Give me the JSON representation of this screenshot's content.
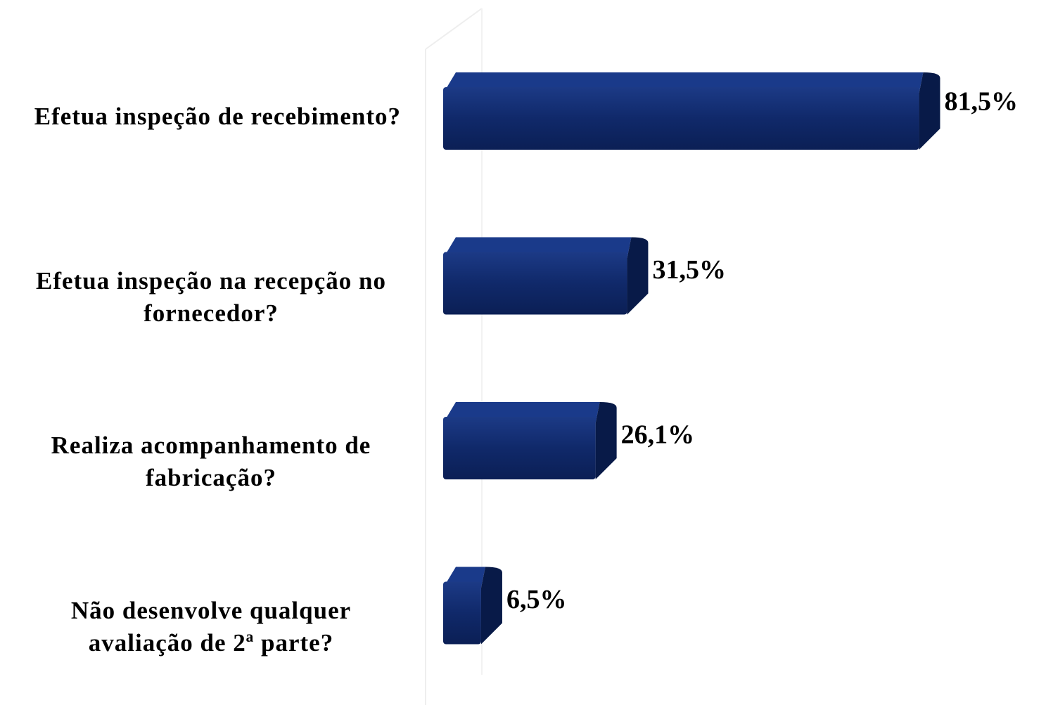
{
  "chart_data": {
    "type": "bar",
    "orientation": "horizontal",
    "categories": [
      "Efetua inspeção de recebimento?",
      "Efetua inspeção na recepção no fornecedor?",
      "Realiza acompanhamento de fabricação?",
      "Não desenvolve qualquer avaliação de 2ª parte?"
    ],
    "values": [
      81.5,
      31.5,
      26.1,
      6.5
    ],
    "value_labels": [
      "81,5%",
      "31,5%",
      "26,1%",
      "6,5%"
    ],
    "color": "#0f2a6b"
  }
}
